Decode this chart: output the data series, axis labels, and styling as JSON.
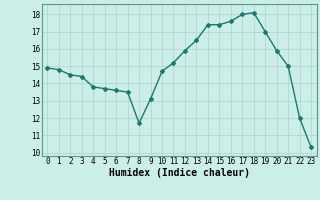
{
  "x": [
    0,
    1,
    2,
    3,
    4,
    5,
    6,
    7,
    8,
    9,
    10,
    11,
    12,
    13,
    14,
    15,
    16,
    17,
    18,
    19,
    20,
    21,
    22,
    23
  ],
  "y": [
    14.9,
    14.8,
    14.5,
    14.4,
    13.8,
    13.7,
    13.6,
    13.5,
    11.7,
    13.1,
    14.7,
    15.2,
    15.9,
    16.5,
    17.4,
    17.4,
    17.6,
    18.0,
    18.1,
    17.0,
    15.9,
    15.0,
    12.0,
    10.3
  ],
  "xlabel": "Humidex (Indice chaleur)",
  "line_color": "#1a7a6e",
  "bg_color": "#cceee8",
  "grid_color": "#b0d8d0",
  "ylim": [
    9.8,
    18.6
  ],
  "xlim": [
    -0.5,
    23.5
  ],
  "yticks": [
    10,
    11,
    12,
    13,
    14,
    15,
    16,
    17,
    18
  ],
  "xticks": [
    0,
    1,
    2,
    3,
    4,
    5,
    6,
    7,
    8,
    9,
    10,
    11,
    12,
    13,
    14,
    15,
    16,
    17,
    18,
    19,
    20,
    21,
    22,
    23
  ],
  "tick_fontsize": 5.5,
  "xlabel_fontsize": 7
}
